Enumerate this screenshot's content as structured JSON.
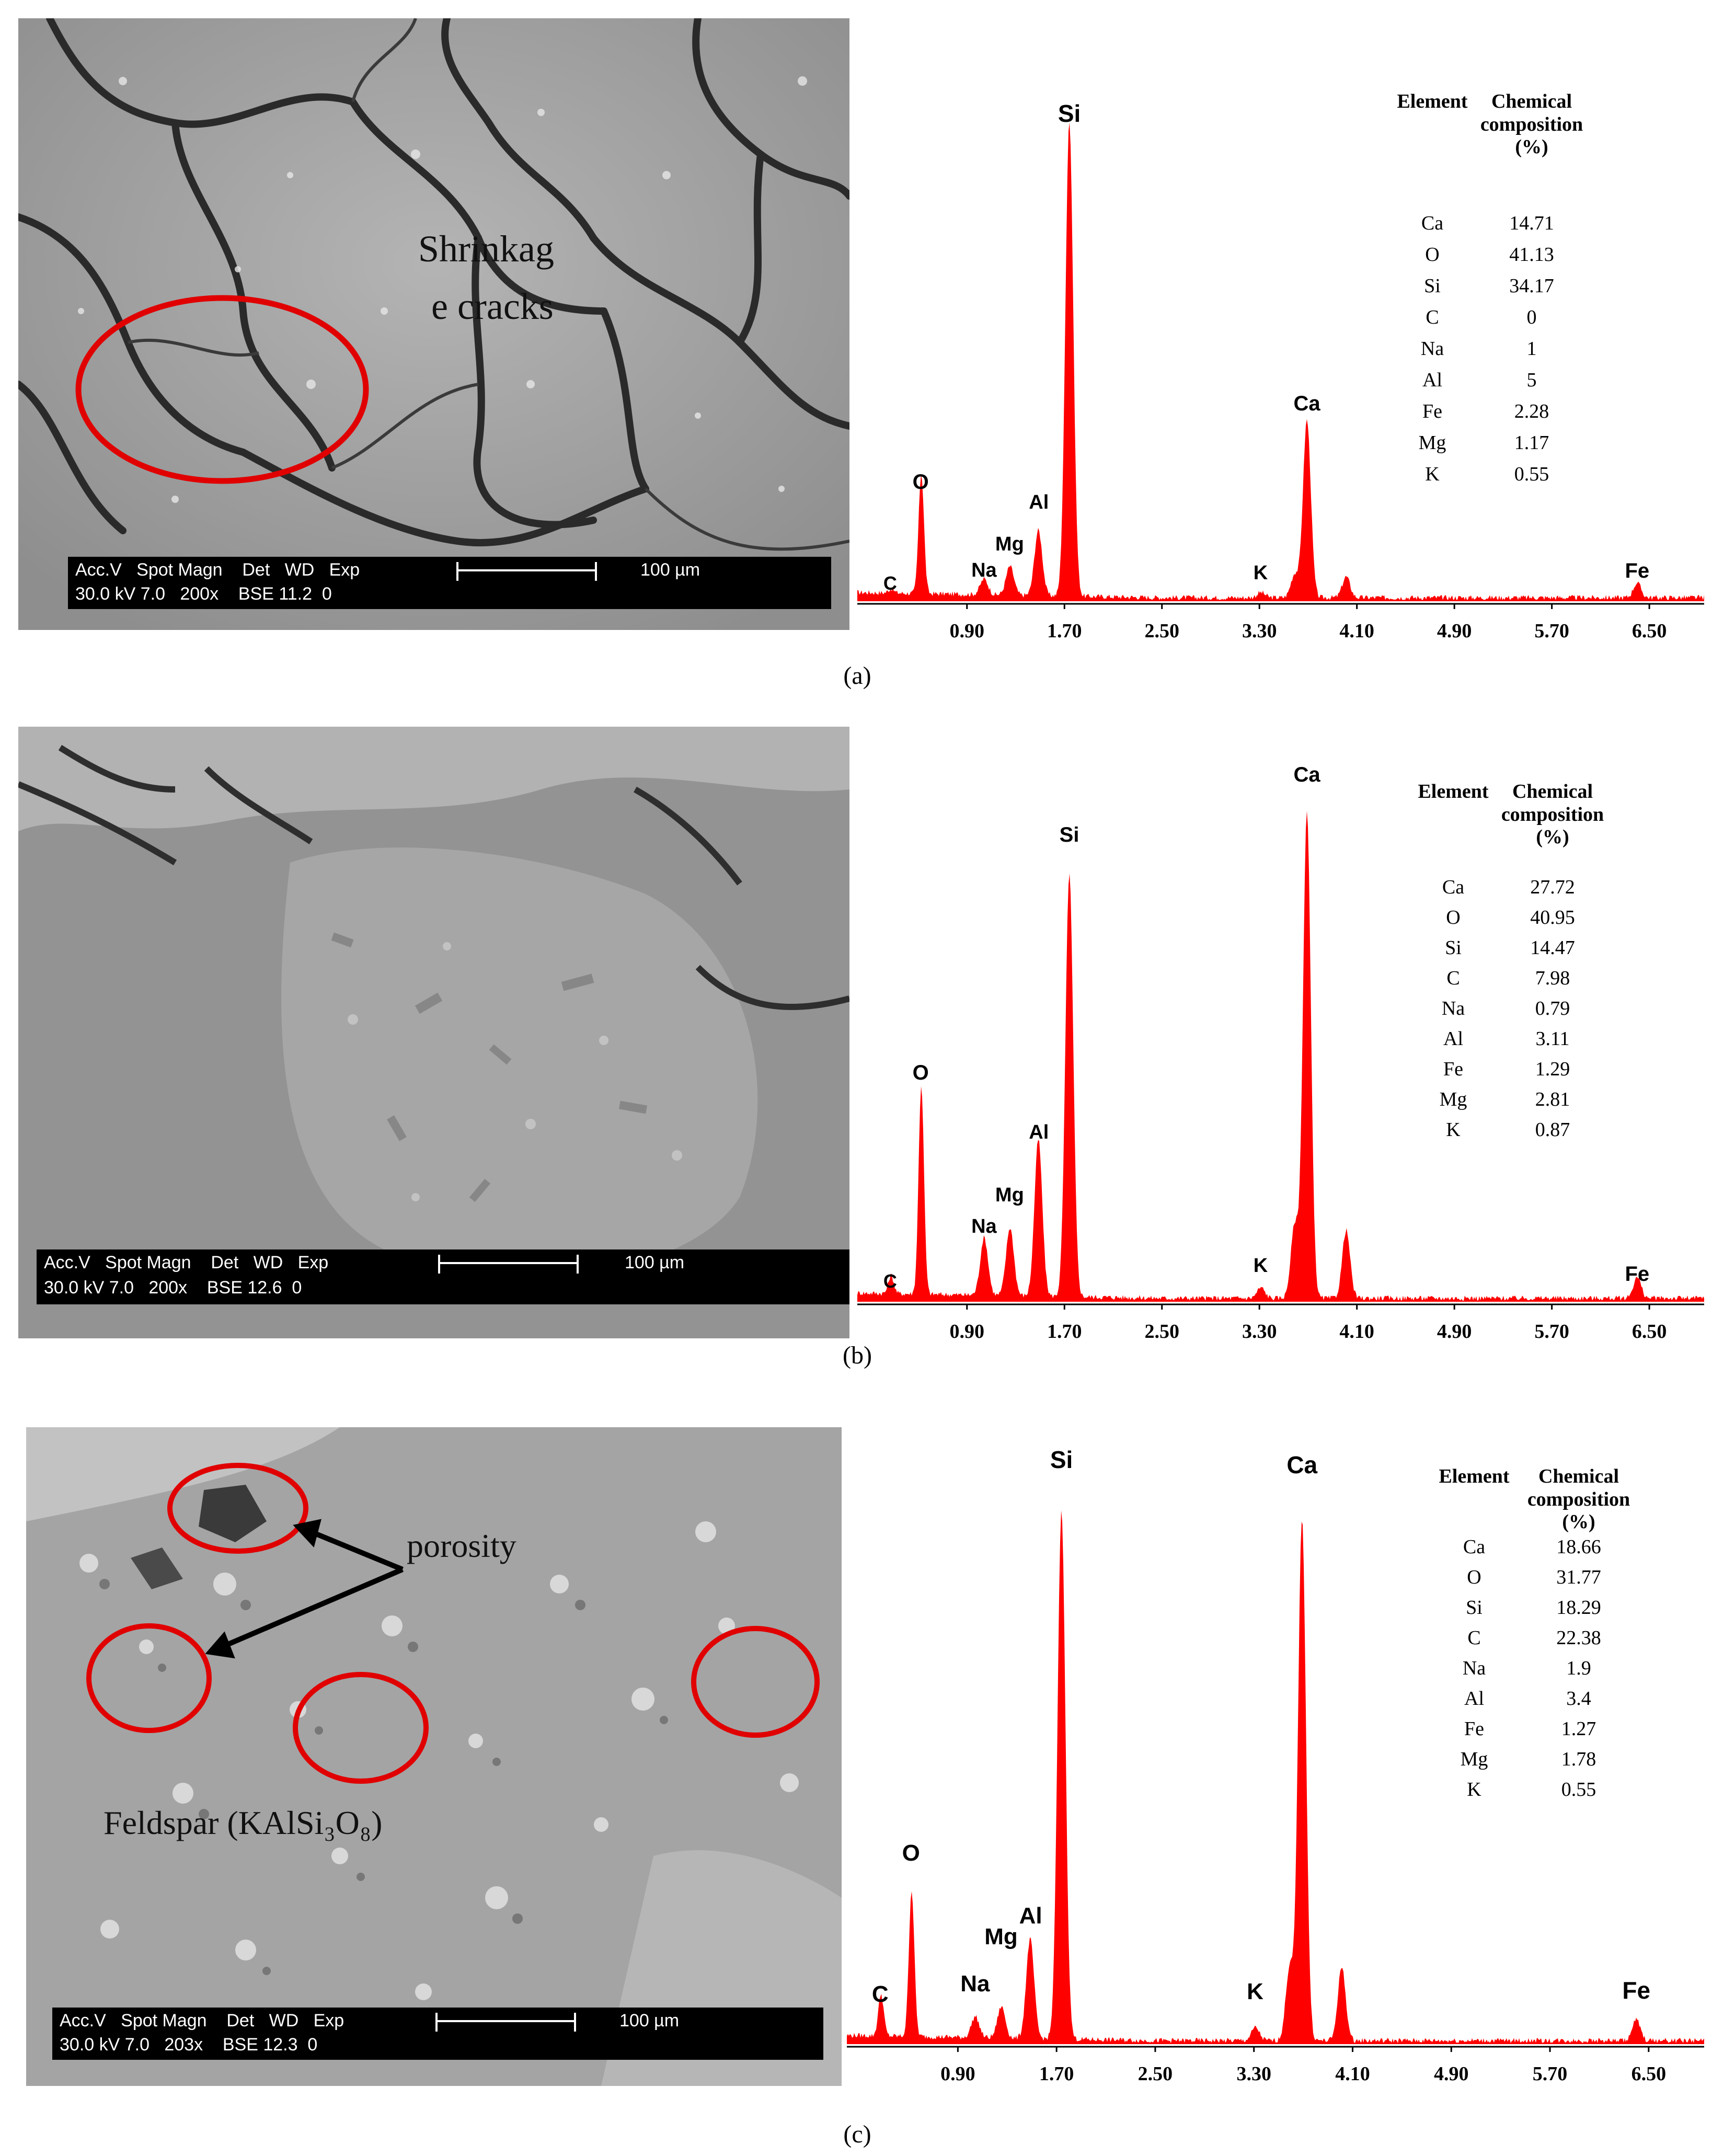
{
  "panels": [
    {
      "id": "a",
      "caption": "(a)",
      "sem": {
        "info_row1": "Acc.V   Spot Magn    Det   WD   Exp",
        "info_row2": "30.0 kV 7.0   200x    BSE 11.2  0",
        "scale": "100 µm",
        "labels": [
          "Shrinkag",
          "e cracks"
        ]
      },
      "eds": {
        "peaks": [
          "Si",
          "O",
          "Al",
          "Mg",
          "Na",
          "C",
          "Ca",
          "K",
          "Fe"
        ],
        "ticks": [
          "0.90",
          "1.70",
          "2.50",
          "3.30",
          "4.10",
          "4.90",
          "5.70",
          "6.50"
        ],
        "table": {
          "h1": "Element",
          "h2a": "Chemical",
          "h2b": "composition",
          "h2c": "(%)",
          "rows": [
            [
              "Ca",
              "14.71"
            ],
            [
              "O",
              "41.13"
            ],
            [
              "Si",
              "34.17"
            ],
            [
              "C",
              "0"
            ],
            [
              "Na",
              "1"
            ],
            [
              "Al",
              "5"
            ],
            [
              "Fe",
              "2.28"
            ],
            [
              "Mg",
              "1.17"
            ],
            [
              "K",
              "0.55"
            ]
          ]
        }
      }
    },
    {
      "id": "b",
      "caption": "(b)",
      "sem": {
        "info_row1": "Acc.V   Spot Magn    Det   WD   Exp",
        "info_row2": "30.0 kV 7.0   200x    BSE 12.6  0",
        "scale": "100 µm",
        "labels": []
      },
      "eds": {
        "peaks": [
          "Ca",
          "Si",
          "O",
          "Al",
          "Mg",
          "Na",
          "C",
          "K",
          "Fe"
        ],
        "ticks": [
          "0.90",
          "1.70",
          "2.50",
          "3.30",
          "4.10",
          "4.90",
          "5.70",
          "6.50"
        ],
        "table": {
          "h1": "Element",
          "h2a": "Chemical",
          "h2b": "composition",
          "h2c": "(%)",
          "rows": [
            [
              "Ca",
              "27.72"
            ],
            [
              "O",
              "40.95"
            ],
            [
              "Si",
              "14.47"
            ],
            [
              "C",
              "7.98"
            ],
            [
              "Na",
              "0.79"
            ],
            [
              "Al",
              "3.11"
            ],
            [
              "Fe",
              "1.29"
            ],
            [
              "Mg",
              "2.81"
            ],
            [
              "K",
              "0.87"
            ]
          ]
        }
      }
    },
    {
      "id": "c",
      "caption": "(c)",
      "sem": {
        "info_row1": "Acc.V   Spot Magn    Det   WD   Exp",
        "info_row2": "30.0 kV 7.0   203x    BSE 12.3  0",
        "scale": "100 µm",
        "labels": [
          "porosity",
          "Feldspar (KAlSi₃O₈)"
        ]
      },
      "eds": {
        "peaks": [
          "Si",
          "Ca",
          "O",
          "Al",
          "Mg",
          "Na",
          "C",
          "K",
          "Fe"
        ],
        "ticks": [
          "0.90",
          "1.70",
          "2.50",
          "3.30",
          "4.10",
          "4.90",
          "5.70",
          "6.50"
        ],
        "table": {
          "h1": "Element",
          "h2a": "Chemical",
          "h2b": "composition",
          "h2c": "(%)",
          "rows": [
            [
              "Ca",
              "18.66"
            ],
            [
              "O",
              "31.77"
            ],
            [
              "Si",
              "18.29"
            ],
            [
              "C",
              "22.38"
            ],
            [
              "Na",
              "1.9"
            ],
            [
              "Al",
              "3.4"
            ],
            [
              "Fe",
              "1.27"
            ],
            [
              "Mg",
              "1.78"
            ],
            [
              "K",
              "0.55"
            ]
          ]
        }
      }
    }
  ],
  "colors": {
    "spectrum": "#ff0000",
    "annotation_circle": "#e00000",
    "info_bar": "#000000"
  }
}
